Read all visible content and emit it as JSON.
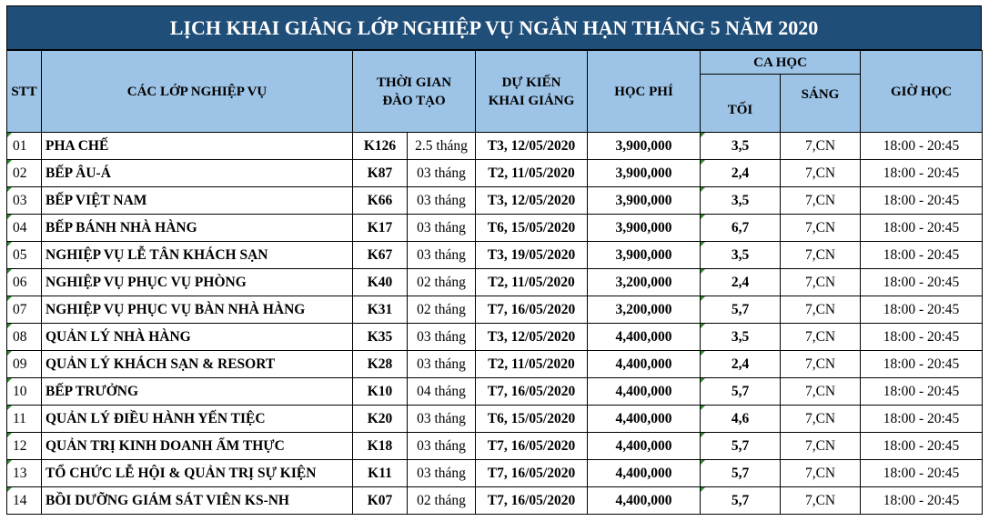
{
  "title": "LỊCH KHAI GIẢNG LỚP NGHIỆP VỤ NGẮN HẠN THÁNG 5 NĂM 2020",
  "headers": {
    "stt": "STT",
    "classes": "CÁC LỚP NGHIỆP VỤ",
    "duration_line1": "THỜI GIAN",
    "duration_line2": "ĐÀO TẠO",
    "start_line1": "DỰ KIẾN",
    "start_line2": "KHAI GIẢNG",
    "fee": "HỌC PHÍ",
    "shift": "CA HỌC",
    "evening": "TỐI",
    "morning": "SÁNG",
    "hours": "GIỜ HỌC"
  },
  "rows": [
    {
      "stt": "01",
      "name": "PHA CHẾ",
      "code": "K126",
      "duration": "2.5 tháng",
      "start": "T3, 12/05/2020",
      "fee": "3,900,000",
      "evening": "3,5",
      "morning": "7,CN",
      "hours": "18:00 - 20:45"
    },
    {
      "stt": "02",
      "name": "BẾP ÂU-Á",
      "code": "K87",
      "duration": "03 tháng",
      "start": "T2, 11/05/2020",
      "fee": "3,900,000",
      "evening": "2,4",
      "morning": "7,CN",
      "hours": "18:00 - 20:45"
    },
    {
      "stt": "03",
      "name": "BẾP VIỆT NAM",
      "code": "K66",
      "duration": "03 tháng",
      "start": "T3, 12/05/2020",
      "fee": "3,900,000",
      "evening": "3,5",
      "morning": "7,CN",
      "hours": "18:00 - 20:45"
    },
    {
      "stt": "04",
      "name": "BẾP BÁNH NHÀ HÀNG",
      "code": "K17",
      "duration": "03 tháng",
      "start": "T6, 15/05/2020",
      "fee": "3,900,000",
      "evening": "6,7",
      "morning": "7,CN",
      "hours": "18:00 - 20:45"
    },
    {
      "stt": "05",
      "name": "NGHIỆP VỤ LỄ TÂN KHÁCH SẠN",
      "code": "K67",
      "duration": "03 tháng",
      "start": "T3, 19/05/2020",
      "fee": "3,900,000",
      "evening": "3,5",
      "morning": "7,CN",
      "hours": "18:00 - 20:45"
    },
    {
      "stt": "06",
      "name": "NGHIỆP VỤ PHỤC VỤ PHÒNG",
      "code": "K40",
      "duration": "02 tháng",
      "start": "T2, 11/05/2020",
      "fee": "3,200,000",
      "evening": "2,4",
      "morning": "7,CN",
      "hours": "18:00 - 20:45"
    },
    {
      "stt": "07",
      "name": "NGHIỆP VỤ PHỤC VỤ BÀN NHÀ HÀNG",
      "code": "K31",
      "duration": "02 tháng",
      "start": "T7, 16/05/2020",
      "fee": "3,200,000",
      "evening": "5,7",
      "morning": "7,CN",
      "hours": "18:00 - 20:45"
    },
    {
      "stt": "08",
      "name": "QUẢN LÝ NHÀ HÀNG",
      "code": "K35",
      "duration": "03 tháng",
      "start": "T3, 12/05/2020",
      "fee": "4,400,000",
      "evening": "3,5",
      "morning": "7,CN",
      "hours": "18:00 - 20:45"
    },
    {
      "stt": "09",
      "name": "QUẢN LÝ KHÁCH SẠN & RESORT",
      "code": "K28",
      "duration": "03 tháng",
      "start": "T2, 11/05/2020",
      "fee": "4,400,000",
      "evening": "2,4",
      "morning": "7,CN",
      "hours": "18:00 - 20:45"
    },
    {
      "stt": "10",
      "name": "BẾP TRƯỞNG",
      "code": "K10",
      "duration": "04 tháng",
      "start": "T7, 16/05/2020",
      "fee": "4,400,000",
      "evening": "5,7",
      "morning": "7,CN",
      "hours": "18:00 - 20:45"
    },
    {
      "stt": "11",
      "name": "QUẢN LÝ ĐIỀU HÀNH YẾN TIỆC",
      "code": "K20",
      "duration": "03 tháng",
      "start": "T6, 15/05/2020",
      "fee": "4,400,000",
      "evening": "4,6",
      "morning": "7,CN",
      "hours": "18:00 - 20:45"
    },
    {
      "stt": "12",
      "name": "QUẢN TRỊ KINH DOANH ẨM THỰC",
      "code": "K18",
      "duration": "03 tháng",
      "start": "T7, 16/05/2020",
      "fee": "4,400,000",
      "evening": "5,7",
      "morning": "7,CN",
      "hours": "18:00 - 20:45"
    },
    {
      "stt": "13",
      "name": "TỔ CHỨC LỄ HỘI & QUẢN TRỊ SỰ KIỆN",
      "code": "K11",
      "duration": "03 tháng",
      "start": "T7, 16/05/2020",
      "fee": "4,400,000",
      "evening": "5,7",
      "morning": "7,CN",
      "hours": "18:00 - 20:45"
    },
    {
      "stt": "14",
      "name": "BỒI DƯỠNG GIÁM SÁT VIÊN KS-NH",
      "code": "K07",
      "duration": "02 tháng",
      "start": "T7, 16/05/2020",
      "fee": "4,400,000",
      "evening": "5,7",
      "morning": "7,CN",
      "hours": "18:00 - 20:45"
    }
  ]
}
